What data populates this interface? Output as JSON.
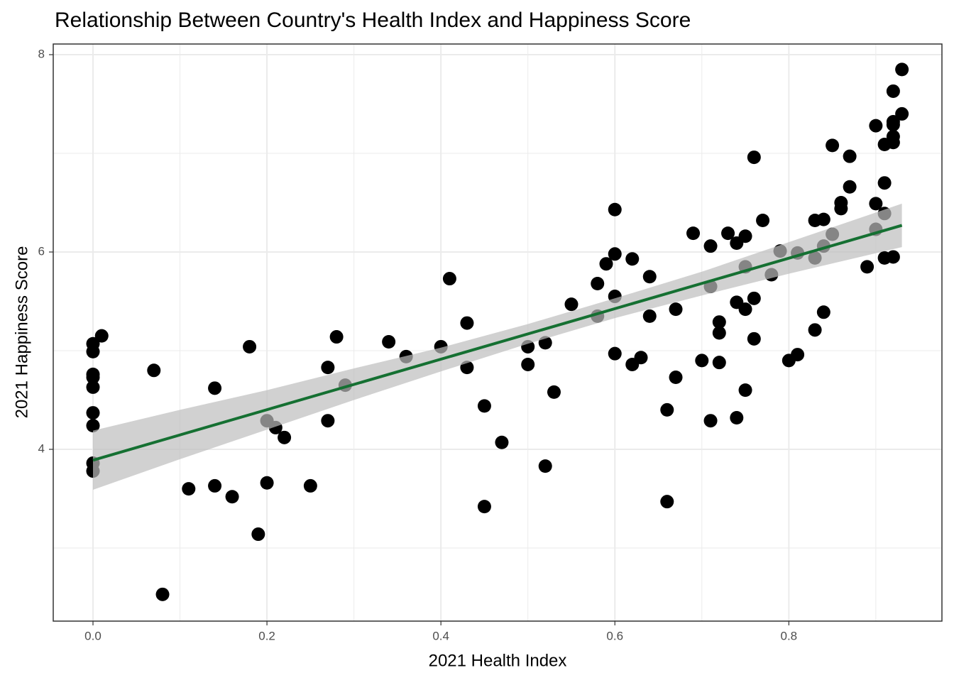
{
  "chart_data": {
    "type": "scatter",
    "title": "Relationship Between Country's Health Index and Happiness Score",
    "x_label": "2021 Health Index",
    "y_label": "2021 Happiness Score",
    "xlim": [
      -0.0457,
      0.976
    ],
    "ylim": [
      2.259,
      8.108
    ],
    "xticks": [
      {
        "value": 0,
        "label": "0.0"
      },
      0.2,
      0.4,
      0.6,
      0.8
    ],
    "yticks": [
      4,
      6,
      8
    ],
    "x_minor_grid": [
      0.1,
      0.3,
      0.5,
      0.7,
      0.9
    ],
    "y_minor_grid": [
      3,
      5,
      7
    ],
    "grid": true,
    "color": "#000000",
    "x": [
      0,
      0,
      0,
      0,
      0,
      0,
      0,
      0,
      0,
      0.01,
      0.07,
      0.08,
      0.11,
      0.14,
      0.14,
      0.16,
      0.18,
      0.19,
      0.2,
      0.2,
      0.21,
      0.22,
      0.25,
      0.27,
      0.27,
      0.28,
      0.29,
      0.34,
      0.36,
      0.4,
      0.41,
      0.43,
      0.43,
      0.45,
      0.45,
      0.47,
      0.5,
      0.5,
      0.52,
      0.52,
      0.53,
      0.55,
      0.58,
      0.58,
      0.59,
      0.6,
      0.6,
      0.6,
      0.6,
      0.62,
      0.62,
      0.63,
      0.64,
      0.64,
      0.66,
      0.66,
      0.67,
      0.67,
      0.69,
      0.7,
      0.71,
      0.71,
      0.71,
      0.72,
      0.72,
      0.72,
      0.73,
      0.74,
      0.74,
      0.74,
      0.75,
      0.75,
      0.75,
      0.75,
      0.76,
      0.76,
      0.76,
      0.77,
      0.78,
      0.79,
      0.8,
      0.81,
      0.81,
      0.83,
      0.83,
      0.83,
      0.84,
      0.84,
      0.84,
      0.85,
      0.85,
      0.86,
      0.86,
      0.87,
      0.87,
      0.89,
      0.9,
      0.9,
      0.9,
      0.91,
      0.91,
      0.91,
      0.91,
      0.92,
      0.92,
      0.92,
      0.92,
      0.92,
      0.92,
      0.93,
      0.93
    ],
    "values": [
      5.07,
      4.99,
      4.76,
      4.73,
      4.63,
      4.37,
      4.24,
      3.86,
      3.78,
      5.15,
      4.8,
      2.53,
      3.6,
      4.62,
      3.63,
      3.52,
      5.04,
      3.14,
      4.29,
      3.66,
      4.22,
      4.12,
      3.63,
      4.83,
      4.29,
      5.14,
      4.65,
      5.09,
      4.94,
      5.04,
      5.73,
      5.28,
      4.83,
      4.44,
      3.42,
      4.07,
      5.04,
      4.86,
      5.08,
      3.83,
      4.58,
      5.47,
      5.68,
      5.35,
      5.88,
      6.43,
      5.98,
      5.55,
      4.97,
      5.93,
      4.86,
      4.93,
      5.75,
      5.35,
      4.4,
      3.47,
      5.42,
      4.73,
      6.19,
      4.9,
      6.06,
      5.65,
      4.29,
      5.29,
      5.18,
      4.88,
      6.19,
      6.09,
      5.49,
      4.32,
      6.16,
      5.85,
      5.42,
      4.6,
      6.96,
      5.53,
      5.12,
      6.32,
      5.77,
      6.01,
      4.9,
      5.99,
      4.96,
      6.32,
      5.94,
      5.21,
      6.33,
      6.06,
      5.39,
      6.18,
      7.08,
      6.5,
      6.44,
      6.97,
      6.66,
      5.85,
      7.28,
      6.49,
      6.23,
      7.09,
      6.7,
      6.39,
      5.94,
      7.63,
      7.32,
      7.29,
      7.17,
      7.11,
      5.95,
      7.85,
      7.4
    ],
    "trend": {
      "color": "#157032",
      "x": [
        0,
        0.93
      ],
      "values": [
        3.89,
        6.27
      ]
    },
    "band": {
      "color": "#bebebe",
      "x": [
        0,
        0.1,
        0.2,
        0.3,
        0.4,
        0.5,
        0.6,
        0.7,
        0.8,
        0.93
      ],
      "lower": [
        3.59,
        3.9,
        4.2,
        4.5,
        4.79,
        5.07,
        5.33,
        5.56,
        5.78,
        6.05
      ],
      "upper": [
        4.19,
        4.4,
        4.6,
        4.82,
        5.03,
        5.27,
        5.53,
        5.8,
        6.1,
        6.49
      ]
    }
  }
}
